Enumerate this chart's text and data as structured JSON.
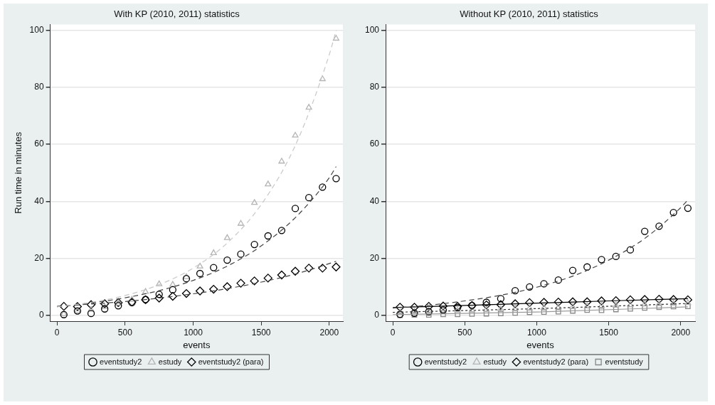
{
  "chart_data": [
    {
      "type": "scatter",
      "title": "With KP (2010, 2011) statistics",
      "xlabel": "events",
      "ylabel": "Run time in minutes",
      "x": [
        50,
        150,
        250,
        350,
        450,
        550,
        650,
        750,
        850,
        950,
        1050,
        1150,
        1250,
        1350,
        1450,
        1550,
        1650,
        1750,
        1850,
        1950,
        2050
      ],
      "xlim": [
        -50,
        2100
      ],
      "xticks": [
        0,
        500,
        1000,
        1500,
        2000
      ],
      "ylim": [
        -2,
        102
      ],
      "yticks": [
        0,
        20,
        40,
        60,
        80,
        100
      ],
      "grid": "y",
      "legend": "bottom",
      "series": [
        {
          "type": "line",
          "color": "#c8c8c8",
          "line_style": "dashed",
          "marker": "none",
          "x": [
            0,
            250,
            500,
            750,
            1000,
            1250,
            1500,
            1750,
            2000,
            2050
          ],
          "values": [
            3.0,
            4.6,
            7.0,
            10.8,
            16.6,
            25.4,
            38.9,
            59.6,
            91.5,
            100
          ]
        },
        {
          "type": "line",
          "color": "#444444",
          "line_style": "dashed",
          "marker": "none",
          "x": [
            0,
            250,
            500,
            750,
            1000,
            1250,
            1500,
            1750,
            2000,
            2050
          ],
          "values": [
            3.1,
            4.4,
            6.2,
            8.7,
            12.3,
            17.3,
            24.4,
            34.3,
            48.3,
            52.2
          ]
        },
        {
          "type": "line",
          "color": "#444444",
          "line_style": "dashed",
          "marker": "none",
          "x": [
            0,
            250,
            500,
            750,
            1000,
            1250,
            1500,
            1750,
            2000,
            2050
          ],
          "values": [
            3.2,
            4.0,
            4.9,
            6.1,
            7.6,
            9.4,
            11.7,
            14.5,
            18.2,
            19.0
          ]
        },
        {
          "name": "eventstudy2",
          "color": "#000000",
          "marker": "circle",
          "values": [
            0.3,
            1.6,
            0.7,
            2.3,
            3.4,
            4.5,
            5.6,
            7.4,
            9.0,
            12.9,
            14.7,
            16.8,
            19.4,
            21.5,
            24.9,
            27.9,
            29.8,
            37.5,
            41.3,
            45.0,
            48.0
          ]
        },
        {
          "name": "estudy",
          "color": "#b4b4b4",
          "marker": "triangle",
          "values": [
            0.5,
            1.5,
            2.0,
            3.0,
            4.2,
            5.6,
            8.3,
            11.0,
            10.8,
            13.5,
            17.2,
            21.9,
            27.2,
            32.2,
            39.5,
            46.0,
            54.0,
            63.1,
            72.9,
            82.9,
            97.1
          ]
        },
        {
          "name": "eventstudy2 (para)",
          "color": "#000000",
          "marker": "diamond",
          "values": [
            3.2,
            3.1,
            3.8,
            4.1,
            4.5,
            4.7,
            5.5,
            6.1,
            6.7,
            7.7,
            8.6,
            9.2,
            10.1,
            11.3,
            12.1,
            13.1,
            14.2,
            15.5,
            16.6,
            16.6,
            17.0
          ]
        }
      ]
    },
    {
      "type": "scatter",
      "title": "Without KP (2010, 2011) statistics",
      "xlabel": "events",
      "x": [
        50,
        150,
        250,
        350,
        450,
        550,
        650,
        750,
        850,
        950,
        1050,
        1150,
        1250,
        1350,
        1450,
        1550,
        1650,
        1750,
        1850,
        1950,
        2050
      ],
      "xlim": [
        -50,
        2100
      ],
      "xticks": [
        0,
        500,
        1000,
        1500,
        2000
      ],
      "ylim": [
        -2,
        102
      ],
      "yticks": [
        0,
        20,
        40,
        60,
        80,
        100
      ],
      "grid": "y",
      "legend": "bottom",
      "series": [
        {
          "type": "line",
          "color": "#444444",
          "line_style": "dashed",
          "marker": "none",
          "x": [
            0,
            250,
            500,
            750,
            1000,
            1250,
            1500,
            1750,
            2000,
            2050
          ],
          "values": [
            2.6,
            3.6,
            5.1,
            7.1,
            9.9,
            13.8,
            19.4,
            27.0,
            37.8,
            40.5
          ]
        },
        {
          "type": "line",
          "color": "#000000",
          "line_style": "solid",
          "marker": "none",
          "x": [
            0,
            500,
            1000,
            1500,
            2050
          ],
          "values": [
            2.8,
            3.5,
            4.3,
            5.1,
            5.9
          ]
        },
        {
          "type": "line",
          "color": "#333333",
          "line_style": "dotted",
          "marker": "none",
          "x": [
            0,
            1000,
            2050
          ],
          "values": [
            1.1,
            2.4,
            4.2
          ]
        },
        {
          "type": "line",
          "color": "#999999",
          "line_style": "solid",
          "marker": "none",
          "x": [
            0,
            1000,
            2050
          ],
          "values": [
            0.3,
            1.2,
            3.0
          ]
        },
        {
          "name": "eventstudy2",
          "color": "#000000",
          "marker": "circle",
          "values": [
            0.4,
            0.8,
            1.3,
            1.9,
            2.8,
            3.5,
            4.6,
            5.9,
            8.7,
            10.0,
            11.1,
            12.4,
            15.8,
            17.0,
            19.6,
            20.7,
            23.0,
            29.5,
            31.3,
            36.1,
            37.6
          ]
        },
        {
          "name": "estudy",
          "color": "#b4b4b4",
          "marker": "triangle",
          "values": [
            1.2,
            1.3,
            1.4,
            1.6,
            1.7,
            1.9,
            2.0,
            2.2,
            2.4,
            2.5,
            2.7,
            2.9,
            3.0,
            3.2,
            3.4,
            3.5,
            3.7,
            3.9,
            4.0,
            4.2,
            4.4
          ]
        },
        {
          "name": "eventstudy2 (para)",
          "color": "#000000",
          "marker": "diamond",
          "values": [
            2.9,
            2.9,
            3.2,
            3.3,
            3.2,
            3.5,
            3.7,
            3.8,
            4.1,
            4.5,
            4.6,
            4.7,
            4.8,
            4.8,
            5.1,
            5.2,
            5.5,
            5.6,
            5.7,
            5.6,
            5.5
          ]
        },
        {
          "name": "eventstudy",
          "color": "#888888",
          "marker": "square",
          "values": [
            0.1,
            0.2,
            0.2,
            0.4,
            0.4,
            0.5,
            0.6,
            0.7,
            0.9,
            1.1,
            1.2,
            1.3,
            1.6,
            1.9,
            1.8,
            2.1,
            2.3,
            2.6,
            2.9,
            3.1,
            3.2
          ]
        }
      ]
    }
  ]
}
